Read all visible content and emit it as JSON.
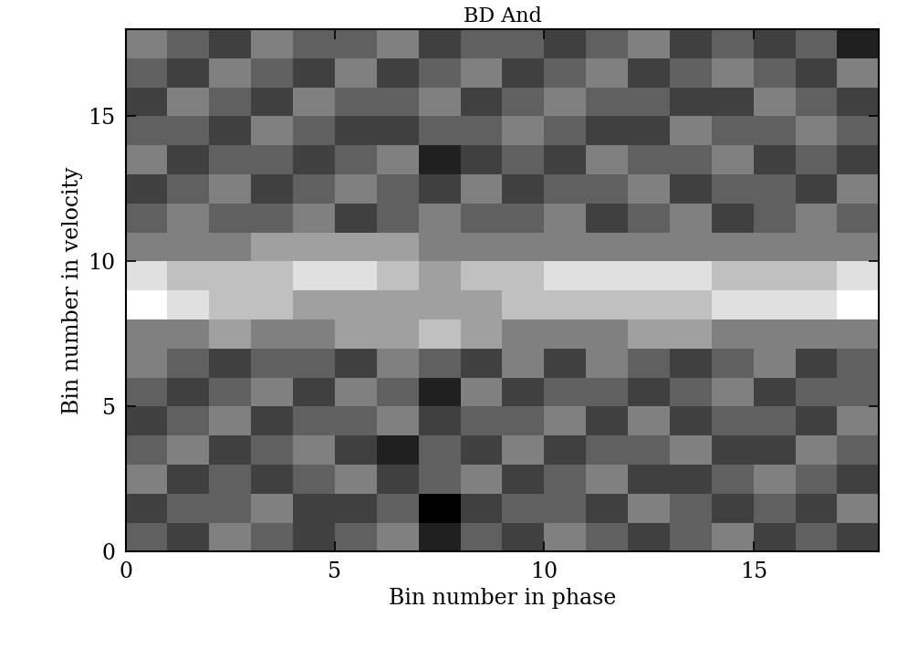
{
  "chart_data": {
    "type": "heatmap",
    "title": "BD And",
    "x_label": "Bin number in phase",
    "y_label": "Bin number in velocity",
    "xlim": [
      0,
      18
    ],
    "ylim": [
      0,
      18
    ],
    "xticks": [
      0,
      5,
      10,
      15
    ],
    "yticks": [
      0,
      5,
      10,
      15
    ],
    "color": "gray",
    "cells": [
      [
        4,
        3,
        5,
        4,
        3,
        4,
        5,
        2,
        4,
        3,
        5,
        4,
        3,
        4,
        5,
        3,
        4,
        3
      ],
      [
        3,
        4,
        4,
        5,
        3,
        3,
        4,
        1,
        3,
        4,
        4,
        3,
        5,
        4,
        3,
        4,
        3,
        5
      ],
      [
        5,
        3,
        4,
        3,
        4,
        5,
        3,
        4,
        5,
        3,
        4,
        5,
        3,
        3,
        4,
        5,
        4,
        3
      ],
      [
        4,
        5,
        3,
        4,
        5,
        3,
        2,
        4,
        3,
        5,
        3,
        4,
        4,
        5,
        3,
        3,
        5,
        4
      ],
      [
        3,
        4,
        5,
        3,
        4,
        4,
        5,
        3,
        4,
        4,
        5,
        3,
        5,
        3,
        4,
        4,
        3,
        5
      ],
      [
        4,
        3,
        4,
        5,
        3,
        5,
        4,
        2,
        5,
        3,
        4,
        4,
        3,
        4,
        5,
        3,
        4,
        4
      ],
      [
        5,
        4,
        3,
        4,
        4,
        3,
        5,
        4,
        3,
        5,
        3,
        5,
        4,
        3,
        4,
        5,
        3,
        4
      ],
      [
        5,
        5,
        6,
        5,
        5,
        6,
        6,
        7,
        6,
        5,
        5,
        5,
        6,
        6,
        5,
        5,
        5,
        5
      ],
      [
        9,
        8,
        7,
        7,
        6,
        6,
        6,
        6,
        6,
        7,
        7,
        7,
        7,
        7,
        8,
        8,
        8,
        9
      ],
      [
        8,
        7,
        7,
        7,
        8,
        8,
        7,
        6,
        7,
        7,
        8,
        8,
        8,
        8,
        7,
        7,
        7,
        8
      ],
      [
        5,
        5,
        5,
        6,
        6,
        6,
        6,
        5,
        5,
        5,
        5,
        5,
        5,
        5,
        5,
        5,
        5,
        5
      ],
      [
        4,
        5,
        4,
        4,
        5,
        3,
        4,
        5,
        4,
        4,
        5,
        3,
        4,
        5,
        3,
        4,
        5,
        4
      ],
      [
        3,
        4,
        5,
        3,
        4,
        5,
        4,
        3,
        5,
        3,
        4,
        4,
        5,
        3,
        4,
        4,
        3,
        5
      ],
      [
        5,
        3,
        4,
        4,
        3,
        4,
        5,
        2,
        3,
        4,
        3,
        5,
        4,
        4,
        5,
        3,
        4,
        3
      ],
      [
        4,
        4,
        3,
        5,
        4,
        3,
        3,
        4,
        4,
        5,
        4,
        3,
        3,
        5,
        4,
        4,
        5,
        4
      ],
      [
        3,
        5,
        4,
        3,
        5,
        4,
        4,
        5,
        3,
        4,
        5,
        4,
        4,
        3,
        3,
        5,
        4,
        3
      ],
      [
        4,
        3,
        5,
        4,
        3,
        5,
        3,
        4,
        5,
        3,
        4,
        5,
        3,
        4,
        5,
        4,
        3,
        5
      ],
      [
        5,
        4,
        3,
        5,
        4,
        4,
        5,
        3,
        4,
        4,
        3,
        4,
        5,
        3,
        4,
        3,
        4,
        2
      ]
    ]
  }
}
